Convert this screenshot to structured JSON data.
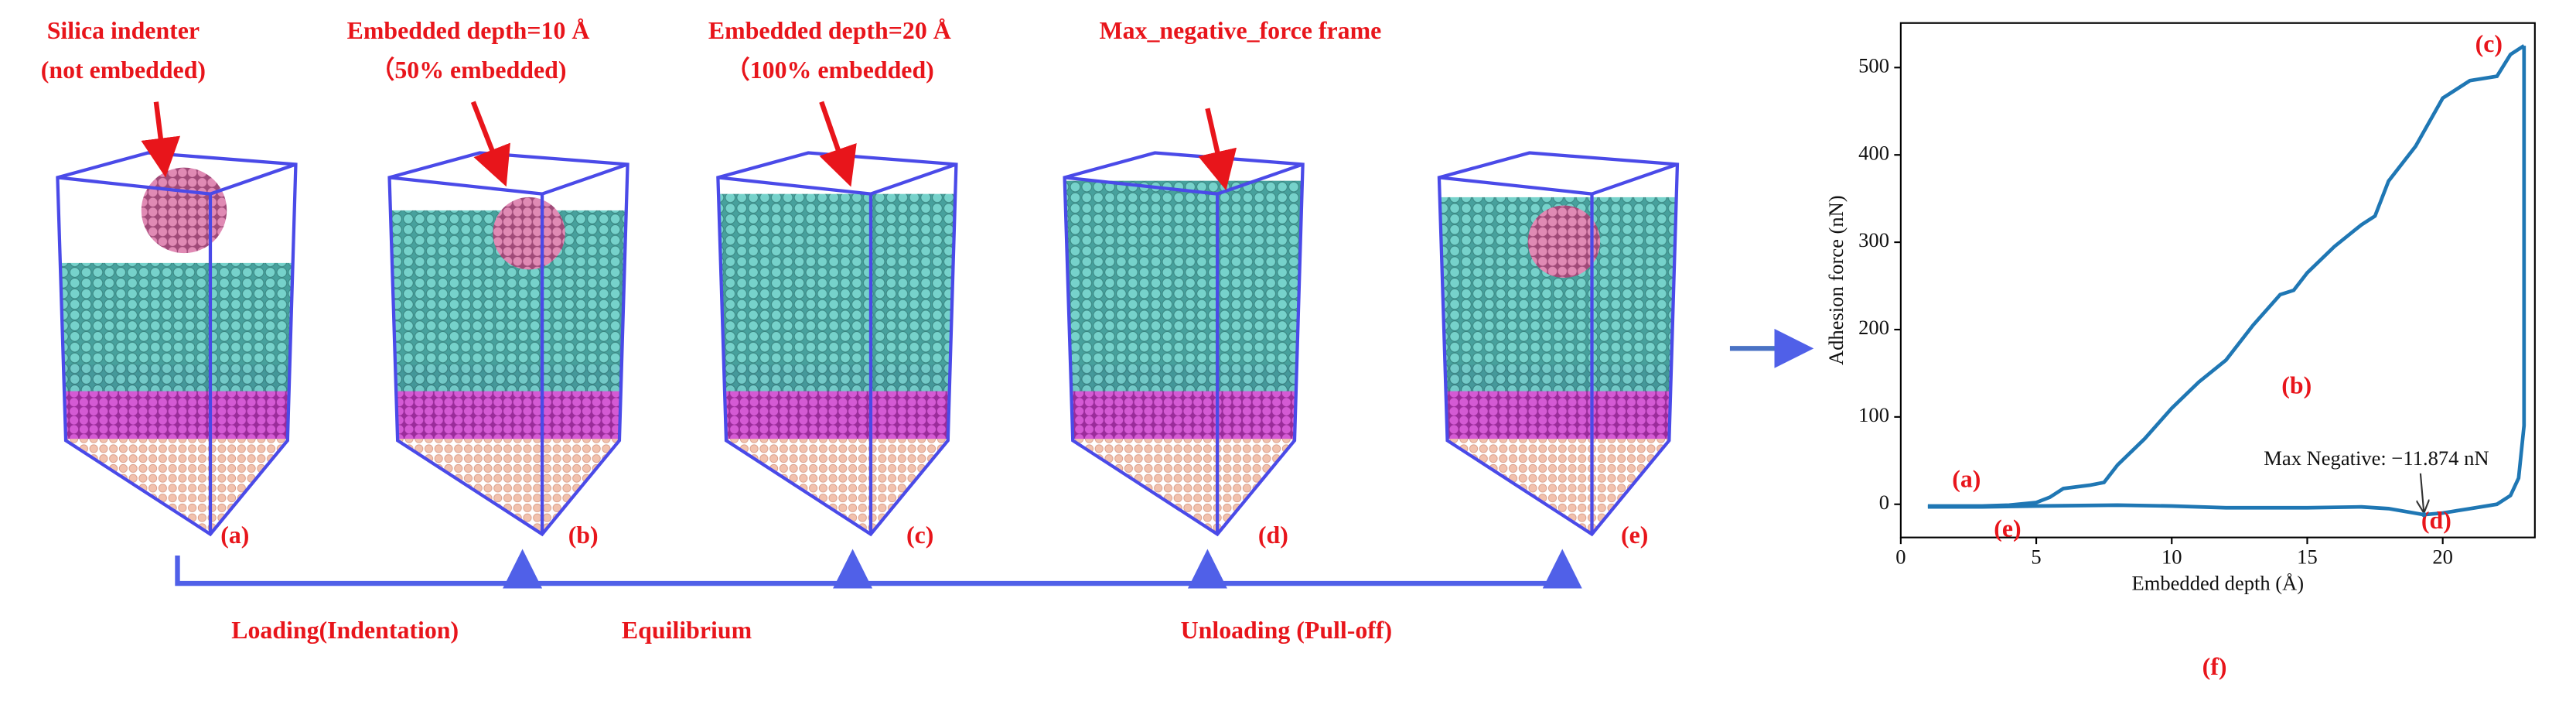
{
  "panels": [
    {
      "caption": [
        "Silica indenter",
        "(not embedded)"
      ],
      "label": "(a)"
    },
    {
      "caption": [
        "Embedded depth=10 Å",
        "（50% embedded)"
      ],
      "label": "(b)"
    },
    {
      "caption": [
        "Embedded depth=20 Å",
        "（100% embedded)"
      ],
      "label": "(c)"
    },
    {
      "caption": [
        "Max_negative_force frame"
      ],
      "label": "(d)"
    },
    {
      "label": "(e)"
    }
  ],
  "stages": [
    "Loading(Indentation)",
    "Equilibrium",
    "Unloading (Pull-off)"
  ],
  "chart_data": {
    "type": "line",
    "panel_label": "(f)",
    "xlabel": "Embedded depth (Å)",
    "ylabel": "Adhesion force (nN)",
    "xlim": [
      0,
      23.4
    ],
    "ylim": [
      -38,
      551
    ],
    "xticks": [
      0,
      5,
      10,
      15,
      20
    ],
    "yticks": [
      0,
      100,
      200,
      300,
      400,
      500
    ],
    "series": [
      {
        "color": "#1f77b4",
        "x": [
          1,
          2,
          3,
          4,
          5,
          5.5,
          6,
          7,
          7.5,
          8,
          9,
          10,
          11,
          12,
          13,
          14,
          14.5,
          15,
          16,
          17,
          17.5,
          18,
          19,
          20,
          21,
          22,
          22.5,
          23
        ],
        "values": [
          -2,
          -2,
          -2,
          -1,
          2,
          8,
          18,
          22,
          25,
          45,
          75,
          110,
          140,
          165,
          205,
          240,
          245,
          265,
          295,
          320,
          330,
          370,
          410,
          465,
          485,
          490,
          515,
          525
        ]
      },
      {
        "color": "#1f77b4",
        "x": [
          23,
          23,
          22.8,
          22.5,
          22,
          21,
          20,
          19.3,
          18,
          17,
          15,
          12,
          10,
          8,
          5,
          3,
          1
        ],
        "values": [
          525,
          90,
          30,
          10,
          0,
          -5,
          -10,
          -11.874,
          -5,
          -3,
          -4,
          -4,
          -2,
          -1,
          -2,
          -3,
          -3
        ]
      }
    ],
    "annotations": [
      "(a)",
      "(b)",
      "(c)",
      "(d)",
      "(e)"
    ],
    "max_note": {
      "text": "Max Negative: −11.874 nN",
      "x": 19.3,
      "y": -11.874
    }
  }
}
